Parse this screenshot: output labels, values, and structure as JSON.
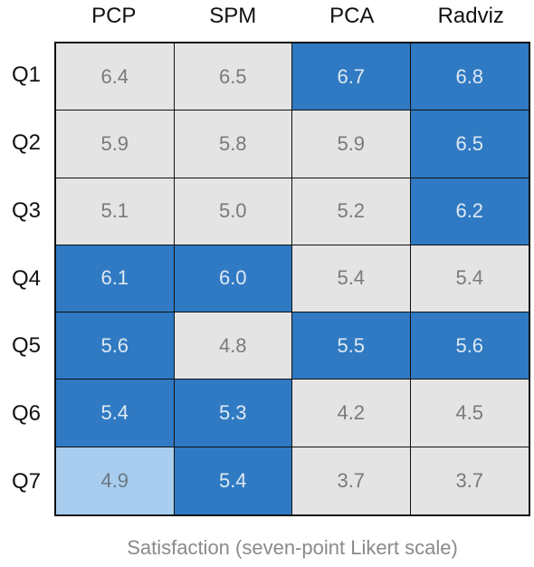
{
  "chart_data": {
    "type": "heatmap",
    "columns": [
      "PCP",
      "SPM",
      "PCA",
      "Radviz"
    ],
    "rows": [
      "Q1",
      "Q2",
      "Q3",
      "Q4",
      "Q5",
      "Q6",
      "Q7"
    ],
    "values": [
      [
        "6.4",
        "6.5",
        "6.7",
        "6.8"
      ],
      [
        "5.9",
        "5.8",
        "5.9",
        "6.5"
      ],
      [
        "5.1",
        "5.0",
        "5.2",
        "6.2"
      ],
      [
        "6.1",
        "6.0",
        "5.4",
        "5.4"
      ],
      [
        "5.6",
        "4.8",
        "5.5",
        "5.6"
      ],
      [
        "5.4",
        "5.3",
        "4.2",
        "4.5"
      ],
      [
        "4.9",
        "5.4",
        "3.7",
        "3.7"
      ]
    ],
    "highlight": [
      [
        "low",
        "low",
        "high",
        "high"
      ],
      [
        "low",
        "low",
        "low",
        "high"
      ],
      [
        "low",
        "low",
        "low",
        "high"
      ],
      [
        "high",
        "high",
        "low",
        "low"
      ],
      [
        "high",
        "low",
        "high",
        "high"
      ],
      [
        "high",
        "high",
        "low",
        "low"
      ],
      [
        "mid",
        "high",
        "low",
        "low"
      ]
    ],
    "caption": "Satisfaction (seven-point Likert scale)",
    "colors": {
      "high": "#2f7ac3",
      "mid": "#a8cdee",
      "low": "#e4e4e4"
    }
  }
}
